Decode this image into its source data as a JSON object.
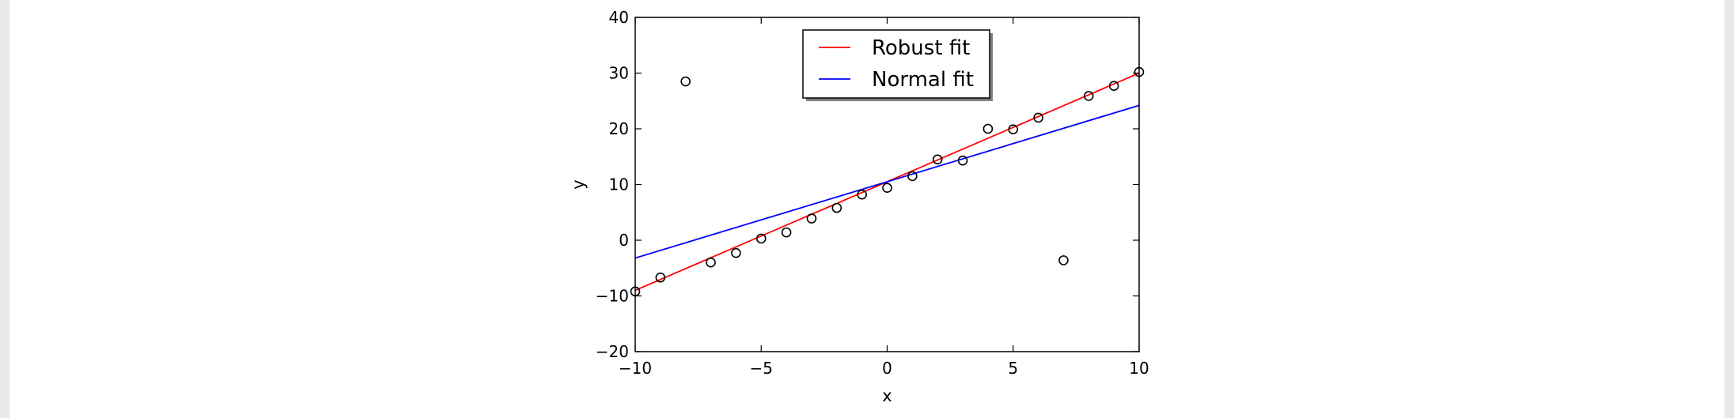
{
  "chart_data": {
    "type": "scatter",
    "title": "",
    "xlabel": "x",
    "ylabel": "y",
    "xlim": [
      -10,
      10
    ],
    "ylim": [
      -20,
      40
    ],
    "grid": false,
    "legend_placement": "top-center",
    "x_ticks": [
      -10,
      -5,
      0,
      5,
      10
    ],
    "y_ticks": [
      -20,
      -10,
      0,
      10,
      20,
      30,
      40
    ],
    "x_tick_labels": [
      "−10",
      "−5",
      "0",
      "5",
      "10"
    ],
    "y_tick_labels": [
      "−20",
      "−10",
      "0",
      "10",
      "20",
      "30",
      "40"
    ],
    "points": {
      "x": [
        -10,
        -9,
        -8,
        -7,
        -6,
        -5,
        -4,
        -3,
        -2,
        -1,
        0,
        1,
        2,
        3,
        4,
        5,
        6,
        7,
        8,
        9,
        10
      ],
      "y": [
        -9.2,
        -6.7,
        28.5,
        -4.0,
        -2.3,
        0.3,
        1.4,
        3.9,
        5.8,
        8.2,
        9.4,
        11.5,
        14.5,
        14.3,
        20.0,
        19.9,
        22.0,
        -3.6,
        25.9,
        27.7,
        30.2
      ],
      "marker": "open-circle",
      "color": "#000000"
    },
    "series": [
      {
        "name": "Robust fit",
        "type": "line",
        "x": [
          -10,
          10
        ],
        "y": [
          -9.0,
          30.0
        ],
        "color": "#ff0000"
      },
      {
        "name": "Normal fit",
        "type": "line",
        "x": [
          -10,
          10
        ],
        "y": [
          -3.2,
          24.2
        ],
        "color": "#0000ff"
      }
    ]
  }
}
